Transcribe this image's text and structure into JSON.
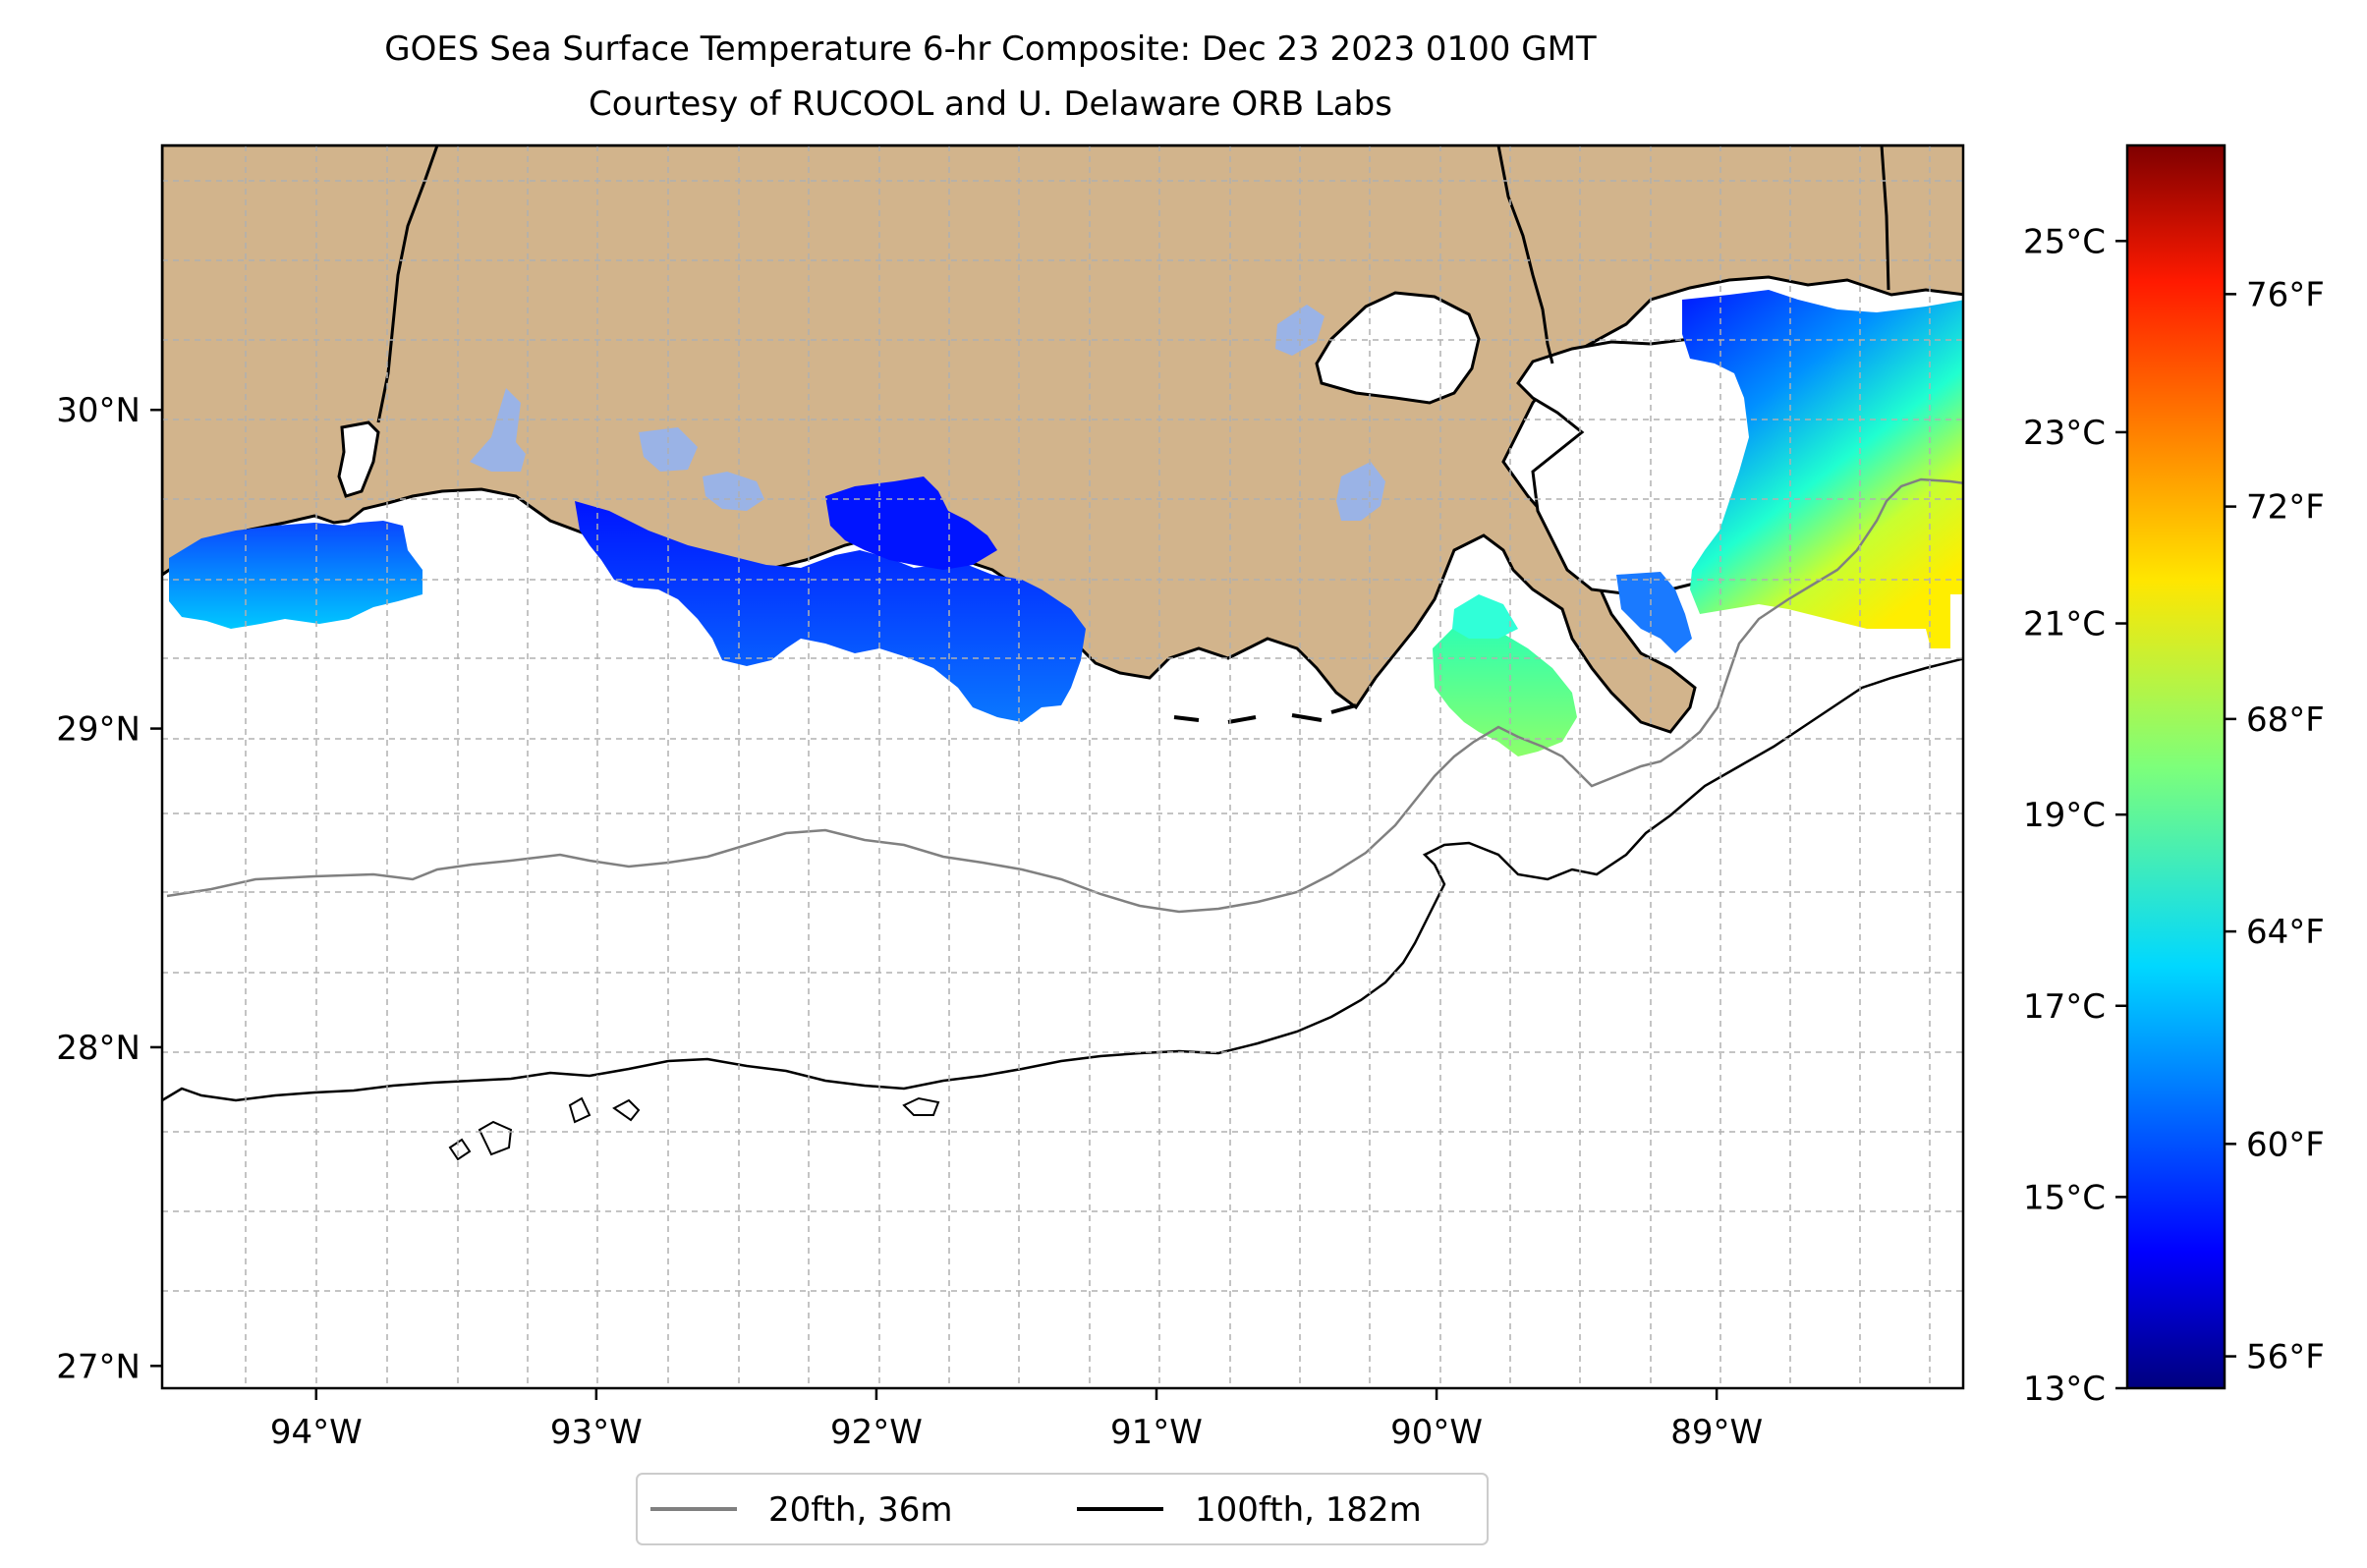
{
  "title_line1": "GOES Sea Surface Temperature 6-hr Composite: Dec 23 2023 0100 GMT",
  "title_line2": "Courtesy of RUCOOL and U. Delaware ORB Labs",
  "axes": {
    "lon_ticks": [
      {
        "value": -94,
        "label": "94°W"
      },
      {
        "value": -93,
        "label": "93°W"
      },
      {
        "value": -92,
        "label": "92°W"
      },
      {
        "value": -91,
        "label": "91°W"
      },
      {
        "value": -90,
        "label": "90°W"
      },
      {
        "value": -89,
        "label": "89°W"
      }
    ],
    "lat_ticks": [
      {
        "value": 27,
        "label": "27°N"
      },
      {
        "value": 28,
        "label": "28°N"
      },
      {
        "value": 29,
        "label": "29°N"
      },
      {
        "value": 30,
        "label": "30°N"
      }
    ],
    "lon_range": [
      -94.55,
      -88.12
    ],
    "lat_range": [
      26.93,
      30.83
    ],
    "grid": true
  },
  "colorbar": {
    "celsius_range": [
      13,
      26
    ],
    "celsius_ticks": [
      {
        "value": 13,
        "label": "13°C"
      },
      {
        "value": 15,
        "label": "15°C"
      },
      {
        "value": 17,
        "label": "17°C"
      },
      {
        "value": 19,
        "label": "19°C"
      },
      {
        "value": 21,
        "label": "21°C"
      },
      {
        "value": 23,
        "label": "23°C"
      },
      {
        "value": 25,
        "label": "25°C"
      }
    ],
    "fahrenheit_ticks": [
      {
        "value": 56,
        "label": "56°F"
      },
      {
        "value": 60,
        "label": "60°F"
      },
      {
        "value": 64,
        "label": "64°F"
      },
      {
        "value": 68,
        "label": "68°F"
      },
      {
        "value": 72,
        "label": "72°F"
      },
      {
        "value": 76,
        "label": "76°F"
      }
    ],
    "colormap": "jet"
  },
  "legend": {
    "placement": "bottom-center",
    "items": [
      {
        "label": "20fth, 36m",
        "color": "#808080"
      },
      {
        "label": "100fth, 182m",
        "color": "#000000"
      }
    ]
  },
  "colors": {
    "land": "#d2b48c",
    "ocean": "#ffffff",
    "inland_water": "#9ab3e6",
    "grid": "#b0b0b0"
  }
}
